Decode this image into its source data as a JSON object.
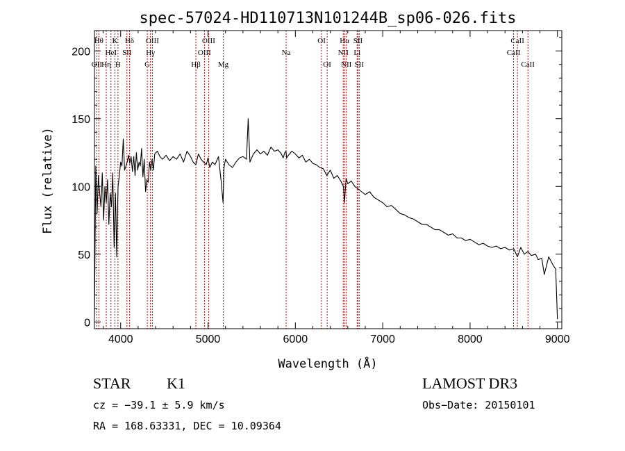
{
  "chart_data": {
    "type": "line",
    "title": "spec-57024-HD110713N101244B_sp06-026.fits",
    "xlabel": "Wavelength (Å)",
    "ylabel": "Flux (relative)",
    "xlim": [
      3700,
      9050
    ],
    "ylim": [
      -5,
      215
    ],
    "xticks": [
      4000,
      5000,
      6000,
      7000,
      8000,
      9000
    ],
    "yticks": [
      0,
      50,
      100,
      150,
      200
    ],
    "minor_x_step": 200,
    "minor_y_step": 10,
    "grid": false,
    "series": [
      {
        "name": "flux",
        "x": [
          3700,
          3715,
          3730,
          3745,
          3760,
          3775,
          3790,
          3805,
          3820,
          3835,
          3850,
          3865,
          3880,
          3895,
          3910,
          3925,
          3940,
          3955,
          3970,
          3985,
          4000,
          4015,
          4030,
          4045,
          4060,
          4075,
          4090,
          4105,
          4120,
          4135,
          4150,
          4165,
          4180,
          4195,
          4210,
          4225,
          4240,
          4255,
          4270,
          4285,
          4300,
          4315,
          4330,
          4345,
          4360,
          4375,
          4390,
          4420,
          4450,
          4480,
          4520,
          4560,
          4600,
          4640,
          4680,
          4720,
          4760,
          4800,
          4830,
          4861,
          4890,
          4920,
          4950,
          4980,
          5000,
          5020,
          5050,
          5080,
          5120,
          5150,
          5172,
          5183,
          5200,
          5240,
          5280,
          5320,
          5360,
          5400,
          5440,
          5460,
          5480,
          5520,
          5560,
          5600,
          5640,
          5680,
          5720,
          5760,
          5800,
          5840,
          5860,
          5880,
          5893,
          5900,
          5920,
          5960,
          6000,
          6040,
          6080,
          6120,
          6160,
          6200,
          6240,
          6280,
          6320,
          6360,
          6400,
          6440,
          6480,
          6520,
          6550,
          6563,
          6580,
          6600,
          6640,
          6680,
          6720,
          6760,
          6800,
          6850,
          6900,
          6950,
          7000,
          7050,
          7100,
          7150,
          7200,
          7250,
          7300,
          7350,
          7400,
          7450,
          7500,
          7550,
          7600,
          7650,
          7700,
          7750,
          7800,
          7850,
          7900,
          7950,
          8000,
          8050,
          8100,
          8150,
          8200,
          8250,
          8300,
          8350,
          8400,
          8450,
          8500,
          8542,
          8580,
          8620,
          8662,
          8700,
          8750,
          8780,
          8820,
          8850,
          8900,
          8950,
          8980,
          9000
        ],
        "values": [
          5,
          115,
          80,
          108,
          95,
          85,
          110,
          75,
          100,
          88,
          105,
          72,
          95,
          85,
          110,
          55,
          95,
          48,
          100,
          108,
          118,
          115,
          135,
          112,
          115,
          118,
          123,
          117,
          122,
          111,
          122,
          108,
          125,
          112,
          118,
          115,
          128,
          107,
          120,
          96,
          105,
          103,
          118,
          112,
          120,
          112,
          124,
          126,
          122,
          120,
          123,
          119,
          122,
          120,
          124,
          118,
          126,
          122,
          118,
          116,
          124,
          120,
          118,
          116,
          121,
          114,
          118,
          116,
          122,
          104,
          88,
          114,
          120,
          116,
          114,
          118,
          121,
          122,
          120,
          150,
          118,
          124,
          127,
          124,
          126,
          123,
          129,
          126,
          127,
          124,
          121,
          125,
          126,
          121,
          123,
          126,
          124,
          121,
          123,
          118,
          120,
          117,
          116,
          114,
          113,
          108,
          112,
          106,
          108,
          104,
          100,
          88,
          106,
          102,
          104,
          100,
          98,
          96,
          94,
          96,
          92,
          90,
          88,
          85,
          86,
          83,
          80,
          79,
          77,
          76,
          74,
          72,
          72,
          70,
          68,
          68,
          66,
          64,
          65,
          62,
          62,
          60,
          61,
          59,
          57,
          58,
          56,
          55,
          56,
          54,
          55,
          53,
          54,
          48,
          55,
          50,
          52,
          49,
          50,
          46,
          47,
          35,
          48,
          42,
          39,
          2
        ]
      }
    ],
    "lines": [
      {
        "label": "OII",
        "w": 3727,
        "row": 3
      },
      {
        "label": "Hθ",
        "w": 3750,
        "row": 1
      },
      {
        "label": "Hη",
        "w": 3835,
        "row": 3
      },
      {
        "label": "HeI",
        "w": 3889,
        "row": 2
      },
      {
        "label": "K",
        "w": 3934,
        "row": 1
      },
      {
        "label": "H",
        "w": 3969,
        "row": 3
      },
      {
        "label": "SII",
        "w": 4072,
        "row": 2
      },
      {
        "label": "Hδ",
        "w": 4102,
        "row": 1
      },
      {
        "label": "G",
        "w": 4305,
        "row": 3
      },
      {
        "label": "Hγ",
        "w": 4341,
        "row": 2
      },
      {
        "label": "OIII",
        "w": 4363,
        "row": 1
      },
      {
        "label": "Hβ",
        "w": 4861,
        "row": 3
      },
      {
        "label": "OIII",
        "w": 4959,
        "row": 2
      },
      {
        "label": "OIII",
        "w": 5007,
        "row": 1
      },
      {
        "label": "Mg",
        "w": 5175,
        "row": 3
      },
      {
        "label": "Na",
        "w": 5894,
        "row": 2
      },
      {
        "label": "OI",
        "w": 6300,
        "row": 1
      },
      {
        "label": "OI",
        "w": 6364,
        "row": 3
      },
      {
        "label": "NII",
        "w": 6548,
        "row": 2
      },
      {
        "label": "Hα",
        "w": 6563,
        "row": 1
      },
      {
        "label": "NII",
        "w": 6583,
        "row": 3
      },
      {
        "label": "Li",
        "w": 6707,
        "row": 2
      },
      {
        "label": "SII",
        "w": 6717,
        "row": 1
      },
      {
        "label": "SII",
        "w": 6731,
        "row": 3
      },
      {
        "label": "CaII",
        "w": 8498,
        "row": 2
      },
      {
        "label": "CaII",
        "w": 8542,
        "row": 1
      },
      {
        "label": "CaII",
        "w": 8662,
        "row": 3
      }
    ],
    "colors": {
      "spectrum": "#000000",
      "lines": "#cc0000",
      "axes": "#000000"
    }
  },
  "info": {
    "class": "STAR",
    "subclass": "K1",
    "survey": "LAMOST DR3",
    "cz": "cz = −39.1 ± 5.9 km/s",
    "obs_date": "Obs−Date: 20150101",
    "coords": "RA = 168.63331, DEC =  10.09364"
  }
}
